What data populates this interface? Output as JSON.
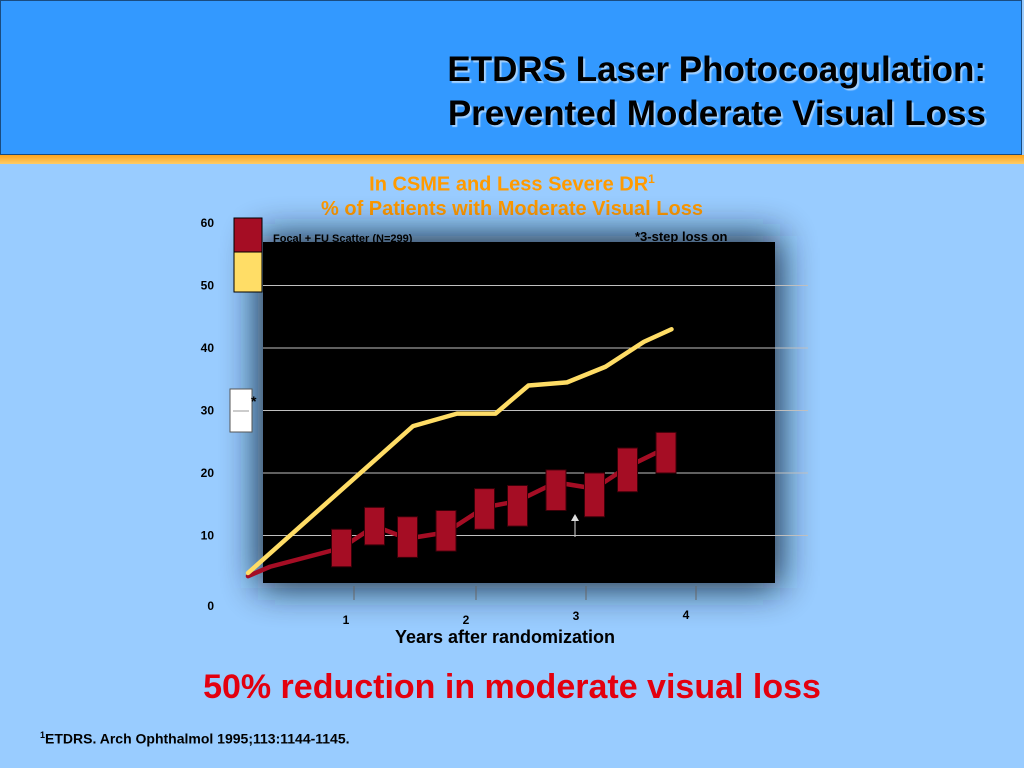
{
  "slide": {
    "title_line1": "ETDRS Laser Photocoagulation:",
    "title_line2": "Prevented Moderate Visual Loss",
    "subtitle_line1": "In CSME and Less Severe DR",
    "subtitle_line1_sup": "1",
    "subtitle_line2": "% of Patients with Moderate Visual Loss",
    "conclusion": "50% reduction in moderate visual loss",
    "reference_sup": "1",
    "reference": "ETDRS. Arch Ophthalmol 1995;113:1144-1145."
  },
  "colors": {
    "treated": "#a50d24",
    "deferred": "#ffdd66",
    "plot_bg": "#000000",
    "accent": "#ff9a00"
  },
  "chart_data": {
    "type": "line",
    "xlabel": "Years after randomization",
    "ylabel": "",
    "ylim": [
      0,
      60
    ],
    "xlim": [
      0,
      4.3
    ],
    "yticks": [
      0,
      10,
      20,
      30,
      40,
      50,
      60
    ],
    "xticks": [
      1,
      2,
      3,
      4
    ],
    "legend_fragment": "Focal + FU Scatter (N=299)",
    "annotation_fragment": "*3-step loss on",
    "asterisk": "*",
    "series": [
      {
        "x": [
          0,
          0.2,
          0.85,
          1.15,
          1.45,
          1.8,
          2.15,
          2.45,
          2.8,
          3.15,
          3.45,
          3.8
        ],
        "values": [
          3.5,
          5,
          8,
          11.5,
          9.5,
          10.5,
          14.5,
          15.5,
          18.5,
          17.5,
          21,
          24
        ]
      },
      {
        "x": [
          0,
          1.5,
          1.9,
          2.25,
          2.55,
          2.9,
          3.25,
          3.6,
          3.85
        ],
        "values": [
          4,
          27.5,
          29.5,
          29.5,
          34,
          34.5,
          37,
          41,
          43
        ]
      }
    ],
    "boxes": [
      {
        "x": 0.85,
        "low": 5,
        "high": 11
      },
      {
        "x": 1.15,
        "low": 8.5,
        "high": 14.5
      },
      {
        "x": 1.45,
        "low": 6.5,
        "high": 13
      },
      {
        "x": 1.8,
        "low": 7.5,
        "high": 14
      },
      {
        "x": 2.15,
        "low": 11,
        "high": 17.5
      },
      {
        "x": 2.45,
        "low": 11.5,
        "high": 18
      },
      {
        "x": 2.8,
        "low": 14,
        "high": 20.5
      },
      {
        "x": 3.15,
        "low": 13,
        "high": 20
      },
      {
        "x": 3.45,
        "low": 17,
        "high": 24
      },
      {
        "x": 3.8,
        "low": 20,
        "high": 26.5
      }
    ]
  }
}
